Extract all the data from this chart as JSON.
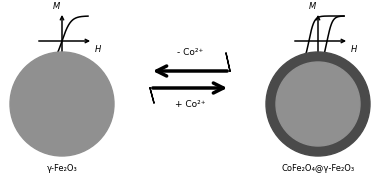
{
  "bg_color": "#ffffff",
  "left_label": "γ-Fe₂O₃",
  "right_label": "CoFe₂O₄@γ-Fe₂O₃",
  "arrow_top_label": "- Co²⁺",
  "arrow_bottom_label": "+ Co²⁺",
  "left_circle_color": "#909090",
  "right_circle_inner_color": "#909090",
  "right_circle_outer_color": "#4a4a4a",
  "fig_width": 3.78,
  "fig_height": 1.76,
  "dpi": 100
}
